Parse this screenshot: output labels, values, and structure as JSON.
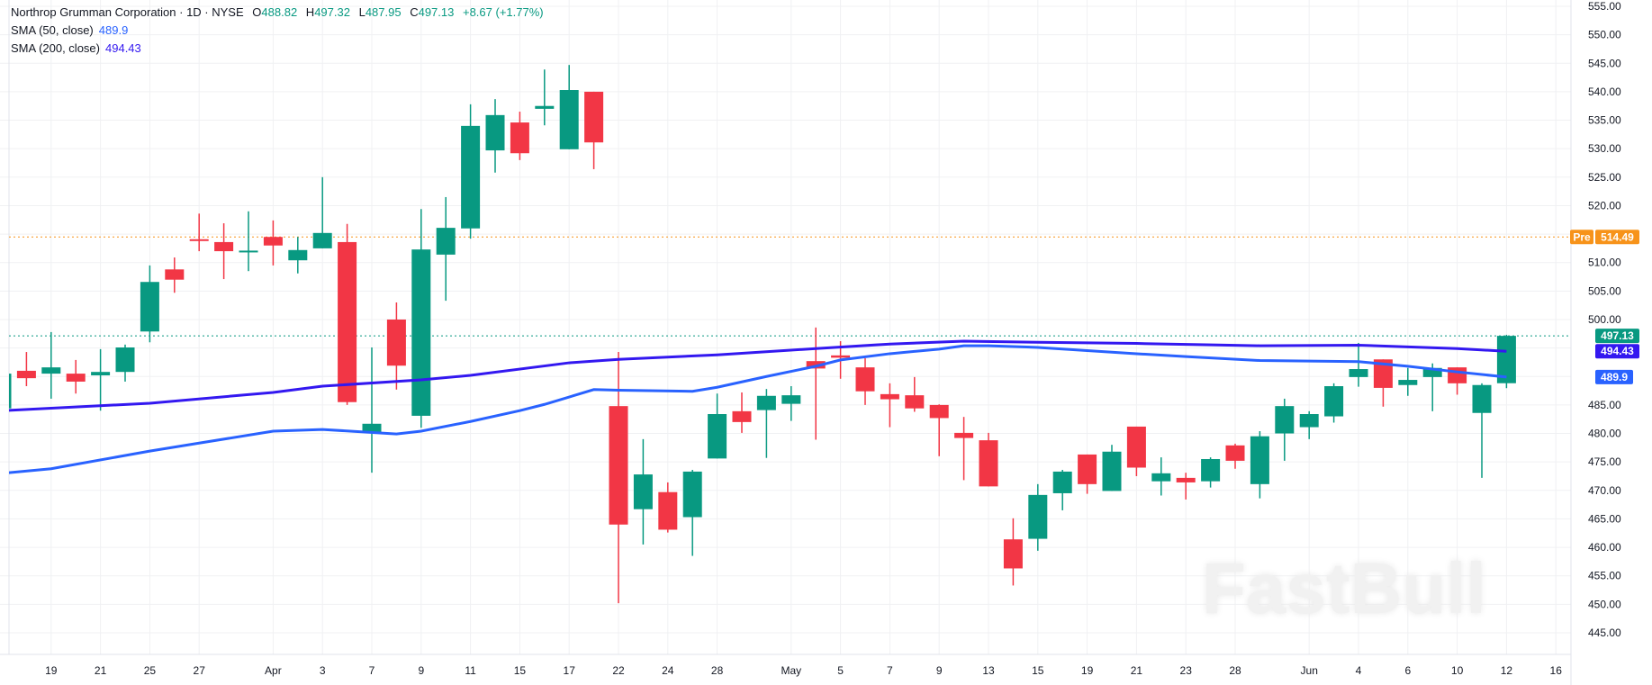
{
  "legend": {
    "title": "Northrop Grumman Corporation · 1D · NYSE",
    "o_label": "O",
    "o": "488.82",
    "h_label": "H",
    "h": "497.32",
    "l_label": "L",
    "l": "487.95",
    "c_label": "C",
    "c": "497.13",
    "change": "+8.67 (+1.77%)",
    "sma50_label": "SMA (50, close)",
    "sma50": "489.9",
    "sma200_label": "SMA (200, close)",
    "sma200": "494.43"
  },
  "watermark": "FastBull",
  "colors": {
    "up": "#089981",
    "down": "#f23645",
    "sma50": "#2962ff",
    "sma200": "#3318f0",
    "pre": "#f7931a"
  },
  "chart_data": {
    "type": "candlestick",
    "ylim": [
      440,
      557
    ],
    "y_ticks": [
      555,
      550,
      545,
      540,
      535,
      530,
      525,
      520,
      510,
      505,
      500,
      485,
      480,
      475,
      470,
      465,
      460,
      455,
      450,
      445
    ],
    "dates": [
      "Mar 17",
      "Mar 18",
      "Mar 19",
      "Mar 20",
      "Mar 21",
      "Mar 24",
      "Mar 25",
      "Mar 26",
      "Mar 27",
      "Mar 28",
      "Mar 31",
      "Apr 1",
      "Apr 2",
      "Apr 3",
      "Apr 4",
      "Apr 7",
      "Apr 8",
      "Apr 9",
      "Apr 10",
      "Apr 11",
      "Apr 14",
      "Apr 15",
      "Apr 16",
      "Apr 17",
      "Apr 21",
      "Apr 22",
      "Apr 23",
      "Apr 24",
      "Apr 25",
      "Apr 28",
      "Apr 29",
      "Apr 30",
      "May 1",
      "May 2",
      "May 5",
      "May 6",
      "May 7",
      "May 8",
      "May 9",
      "May 12",
      "May 13",
      "May 14",
      "May 15",
      "May 16",
      "May 19",
      "May 20",
      "May 21",
      "May 22",
      "May 23",
      "May 27",
      "May 28",
      "May 29",
      "May 30",
      "Jun 2",
      "Jun 3",
      "Jun 4",
      "Jun 5",
      "Jun 6",
      "Jun 9",
      "Jun 10",
      "Jun 11",
      "Jun 12"
    ],
    "ohlc": [
      [
        484.4,
        490.6,
        484.2,
        490.5
      ],
      [
        491.0,
        494.3,
        488.3,
        489.7
      ],
      [
        490.5,
        497.8,
        486.1,
        491.6
      ],
      [
        490.5,
        492.9,
        487.0,
        489.1
      ],
      [
        490.2,
        494.8,
        484.0,
        490.8
      ],
      [
        490.8,
        495.6,
        489.1,
        495.1
      ],
      [
        497.9,
        509.5,
        496.0,
        506.6
      ],
      [
        508.8,
        510.9,
        504.7,
        507.0
      ],
      [
        514.1,
        518.6,
        512.0,
        513.8
      ],
      [
        513.6,
        516.9,
        507.1,
        512.0
      ],
      [
        511.9,
        519.0,
        508.5,
        512.1
      ],
      [
        514.5,
        517.4,
        509.5,
        513.0
      ],
      [
        510.4,
        514.5,
        508.1,
        512.2
      ],
      [
        512.5,
        525.0,
        512.5,
        515.2
      ],
      [
        513.6,
        516.8,
        485.0,
        485.5
      ],
      [
        480.1,
        495.1,
        473.1,
        481.7
      ],
      [
        500.0,
        503.0,
        487.7,
        491.9
      ],
      [
        483.1,
        519.4,
        481.0,
        512.3
      ],
      [
        511.4,
        521.5,
        503.3,
        516.1
      ],
      [
        516.0,
        537.8,
        514.2,
        534.0
      ],
      [
        529.7,
        538.7,
        525.8,
        535.9
      ],
      [
        534.6,
        536.5,
        528.0,
        529.2
      ],
      [
        537.0,
        543.9,
        534.1,
        537.5
      ],
      [
        529.9,
        544.7,
        529.9,
        540.3
      ],
      [
        540.0,
        540.0,
        526.4,
        531.1
      ],
      [
        484.8,
        494.3,
        450.2,
        464.0
      ],
      [
        466.7,
        479.0,
        460.5,
        472.8
      ],
      [
        469.7,
        471.4,
        462.6,
        463.1
      ],
      [
        465.3,
        473.6,
        458.5,
        473.3
      ],
      [
        475.6,
        487.0,
        475.6,
        483.4
      ],
      [
        483.9,
        487.2,
        480.1,
        482.0
      ],
      [
        484.1,
        487.8,
        475.7,
        486.6
      ],
      [
        485.2,
        488.3,
        482.2,
        486.7
      ],
      [
        492.7,
        498.6,
        478.9,
        491.4
      ],
      [
        493.7,
        496.2,
        489.6,
        493.3
      ],
      [
        491.6,
        493.2,
        485.0,
        487.4
      ],
      [
        486.9,
        488.8,
        481.1,
        486.0
      ],
      [
        486.7,
        489.9,
        483.8,
        484.4
      ],
      [
        485.0,
        485.1,
        476.0,
        482.7
      ],
      [
        480.1,
        482.9,
        471.8,
        479.2
      ],
      [
        478.8,
        480.1,
        470.7,
        470.7
      ],
      [
        461.4,
        465.1,
        453.3,
        456.3
      ],
      [
        461.5,
        471.1,
        459.4,
        469.2
      ],
      [
        469.5,
        473.6,
        466.5,
        473.3
      ],
      [
        476.3,
        476.3,
        469.4,
        471.1
      ],
      [
        469.9,
        478.0,
        469.9,
        476.8
      ],
      [
        481.2,
        481.2,
        472.5,
        474.0
      ],
      [
        471.6,
        475.8,
        469.1,
        473.0
      ],
      [
        472.2,
        473.1,
        468.4,
        471.4
      ],
      [
        471.6,
        475.8,
        470.5,
        475.5
      ],
      [
        477.9,
        478.2,
        473.8,
        475.2
      ],
      [
        471.1,
        480.4,
        468.6,
        479.5
      ],
      [
        480.0,
        486.1,
        475.2,
        484.8
      ],
      [
        481.1,
        483.9,
        479.0,
        483.4
      ],
      [
        483.0,
        488.8,
        481.9,
        488.3
      ],
      [
        489.9,
        495.9,
        488.2,
        491.3
      ],
      [
        493.0,
        493.0,
        484.7,
        488.0
      ],
      [
        488.5,
        491.5,
        486.6,
        489.4
      ],
      [
        489.9,
        492.3,
        483.9,
        491.5
      ],
      [
        491.6,
        491.6,
        486.8,
        488.8
      ],
      [
        483.6,
        488.8,
        472.2,
        488.5
      ],
      [
        488.82,
        497.32,
        487.95,
        497.13
      ]
    ],
    "sma50": [
      [
        0,
        473.0
      ],
      [
        2,
        473.8
      ],
      [
        6,
        476.9
      ],
      [
        8,
        478.3
      ],
      [
        11,
        480.4
      ],
      [
        13,
        480.7
      ],
      [
        16,
        479.9
      ],
      [
        17,
        480.4
      ],
      [
        19,
        482.1
      ],
      [
        21,
        484.0
      ],
      [
        22,
        485.1
      ],
      [
        24,
        487.7
      ],
      [
        25,
        487.6
      ],
      [
        28,
        487.4
      ],
      [
        29,
        488.1
      ],
      [
        31,
        490.0
      ],
      [
        33,
        491.8
      ],
      [
        34,
        492.9
      ],
      [
        36,
        494.0
      ],
      [
        38,
        494.8
      ],
      [
        39,
        495.4
      ],
      [
        40,
        495.4
      ],
      [
        42,
        495.1
      ],
      [
        46,
        494.0
      ],
      [
        48,
        493.5
      ],
      [
        51,
        492.8
      ],
      [
        55,
        492.6
      ],
      [
        57,
        491.8
      ],
      [
        59,
        490.8
      ],
      [
        61,
        489.9
      ]
    ],
    "sma200": [
      [
        0,
        484.0
      ],
      [
        6,
        485.3
      ],
      [
        11,
        487.2
      ],
      [
        13,
        488.3
      ],
      [
        17,
        489.4
      ],
      [
        19,
        490.2
      ],
      [
        23,
        492.4
      ],
      [
        25,
        493.0
      ],
      [
        29,
        493.8
      ],
      [
        33,
        494.9
      ],
      [
        36,
        495.7
      ],
      [
        39,
        496.2
      ],
      [
        42,
        496.0
      ],
      [
        46,
        495.8
      ],
      [
        51,
        495.4
      ],
      [
        55,
        495.5
      ],
      [
        59,
        494.9
      ],
      [
        61,
        494.43
      ]
    ],
    "x_ticks": [
      {
        "label": "19",
        "date": "Mar 19"
      },
      {
        "label": "21",
        "date": "Mar 21"
      },
      {
        "label": "25",
        "date": "Mar 25"
      },
      {
        "label": "27",
        "date": "Mar 27"
      },
      {
        "label": "Apr",
        "date": "Apr 1"
      },
      {
        "label": "3",
        "date": "Apr 3"
      },
      {
        "label": "7",
        "date": "Apr 7"
      },
      {
        "label": "9",
        "date": "Apr 9"
      },
      {
        "label": "11",
        "date": "Apr 11"
      },
      {
        "label": "15",
        "date": "Apr 15"
      },
      {
        "label": "17",
        "date": "Apr 17"
      },
      {
        "label": "22",
        "date": "Apr 22"
      },
      {
        "label": "24",
        "date": "Apr 24"
      },
      {
        "label": "28",
        "date": "Apr 28"
      },
      {
        "label": "May",
        "date": "May 1"
      },
      {
        "label": "5",
        "date": "May 5"
      },
      {
        "label": "7",
        "date": "May 7"
      },
      {
        "label": "9",
        "date": "May 9"
      },
      {
        "label": "13",
        "date": "May 13"
      },
      {
        "label": "15",
        "date": "May 15"
      },
      {
        "label": "19",
        "date": "May 19"
      },
      {
        "label": "21",
        "date": "May 21"
      },
      {
        "label": "23",
        "date": "May 23"
      },
      {
        "label": "28",
        "date": "May 28"
      },
      {
        "label": "Jun",
        "date": "Jun 2"
      },
      {
        "label": "4",
        "date": "Jun 4"
      },
      {
        "label": "6",
        "date": "Jun 6"
      },
      {
        "label": "10",
        "date": "Jun 10"
      },
      {
        "label": "12",
        "date": "Jun 12"
      },
      {
        "label": "16",
        "date": "Jun 16"
      }
    ],
    "price_labels": {
      "pre_tag": "Pre",
      "pre": 514.49,
      "pre_text": "514.49",
      "last": 497.13,
      "last_text": "497.13",
      "sma200": 494.43,
      "sma200_text": "494.43",
      "sma50": 489.9,
      "sma50_text": "489.9"
    }
  }
}
